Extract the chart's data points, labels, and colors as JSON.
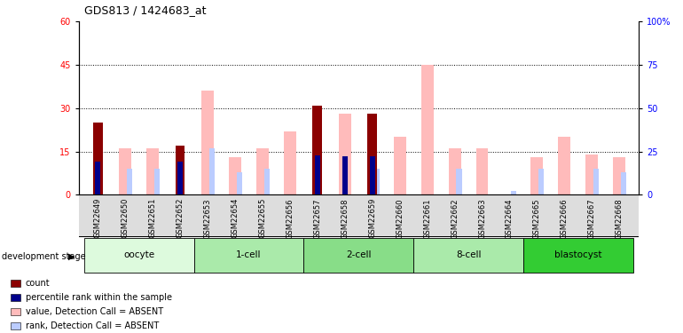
{
  "title": "GDS813 / 1424683_at",
  "samples": [
    "GSM22649",
    "GSM22650",
    "GSM22651",
    "GSM22652",
    "GSM22653",
    "GSM22654",
    "GSM22655",
    "GSM22656",
    "GSM22657",
    "GSM22658",
    "GSM22659",
    "GSM22660",
    "GSM22661",
    "GSM22662",
    "GSM22663",
    "GSM22664",
    "GSM22665",
    "GSM22666",
    "GSM22667",
    "GSM22668"
  ],
  "count_values": [
    25,
    0,
    0,
    17,
    0,
    0,
    0,
    0,
    31,
    0,
    28,
    0,
    0,
    0,
    0,
    0,
    0,
    0,
    0,
    0
  ],
  "rank_values": [
    19,
    0,
    0,
    19,
    0,
    0,
    0,
    0,
    23,
    22,
    22,
    0,
    0,
    0,
    0,
    0,
    0,
    0,
    0,
    0
  ],
  "absent_value": [
    0,
    16,
    16,
    0,
    36,
    13,
    16,
    22,
    0,
    28,
    0,
    20,
    45,
    16,
    16,
    0,
    13,
    20,
    14,
    13
  ],
  "absent_rank": [
    0,
    15,
    15,
    0,
    27,
    13,
    15,
    0,
    0,
    0,
    15,
    0,
    0,
    15,
    0,
    2,
    15,
    0,
    15,
    13
  ],
  "stages": [
    {
      "label": "oocyte",
      "start": 0,
      "end": 4,
      "color": "#ddfadd"
    },
    {
      "label": "1-cell",
      "start": 4,
      "end": 8,
      "color": "#aaeaaa"
    },
    {
      "label": "2-cell",
      "start": 8,
      "end": 12,
      "color": "#88dd88"
    },
    {
      "label": "8-cell",
      "start": 12,
      "end": 16,
      "color": "#aaeaaa"
    },
    {
      "label": "blastocyst",
      "start": 16,
      "end": 20,
      "color": "#33cc33"
    }
  ],
  "ylim_left": [
    0,
    60
  ],
  "ylim_right": [
    0,
    100
  ],
  "yticks_left": [
    0,
    15,
    30,
    45,
    60
  ],
  "yticks_right": [
    0,
    25,
    50,
    75,
    100
  ],
  "color_count": "#8b0000",
  "color_rank": "#00008b",
  "color_absent_val": "#ffbbbb",
  "color_absent_rank": "#bbccff"
}
